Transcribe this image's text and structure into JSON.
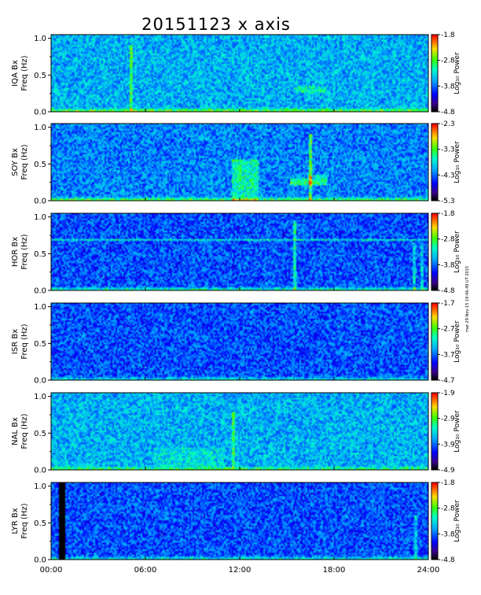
{
  "figure": {
    "title": "20151123 x axis",
    "side_note": "mat 29-Nov-15 19:46:49 UT 2015"
  },
  "chart_data": [
    {
      "type": "heatmap",
      "station": "IQA",
      "ylabel": [
        "IQA Bx",
        "Freq (Hz)"
      ],
      "yticks": [
        "1.0",
        "0.5",
        "0.0"
      ],
      "ylim": [
        0,
        1.05
      ],
      "xlim": [
        0,
        24
      ],
      "colorbar": {
        "label": "Log₁₀ Power",
        "ticks": [
          "-1.8",
          "-2.8",
          "-3.8",
          "-4.8"
        ],
        "range": [
          -4.8,
          -1.8
        ]
      },
      "base": 0.42,
      "features": [
        {
          "kind": "vline",
          "t": 5.1,
          "w": 0.12,
          "f0": 0.0,
          "f1": 0.9,
          "v": 0.22
        },
        {
          "kind": "blob",
          "t0": 15.5,
          "t1": 17.5,
          "f0": 0.25,
          "f1": 0.35,
          "v": 0.14
        },
        {
          "kind": "floor",
          "v": 0.32
        }
      ]
    },
    {
      "type": "heatmap",
      "station": "SOY",
      "ylabel": [
        "SOY Bx",
        "Freq (Hz)"
      ],
      "yticks": [
        "1.0",
        "0.5",
        "0.0"
      ],
      "ylim": [
        0,
        1.05
      ],
      "xlim": [
        0,
        24
      ],
      "colorbar": {
        "label": "Log₁₀ Power",
        "ticks": [
          "-2.3",
          "-3.3",
          "-4.3",
          "-5.3"
        ],
        "range": [
          -5.3,
          -2.3
        ]
      },
      "base": 0.36,
      "features": [
        {
          "kind": "blob",
          "t0": 11.5,
          "t1": 13.2,
          "f0": 0.0,
          "f1": 0.55,
          "v": 0.22
        },
        {
          "kind": "blob",
          "t0": 15.2,
          "t1": 16.3,
          "f0": 0.2,
          "f1": 0.3,
          "v": 0.3
        },
        {
          "kind": "blob",
          "t0": 16.3,
          "t1": 17.6,
          "f0": 0.22,
          "f1": 0.34,
          "v": 0.24
        },
        {
          "kind": "vline",
          "t": 16.5,
          "w": 0.08,
          "f0": 0.0,
          "f1": 0.9,
          "v": 0.3
        },
        {
          "kind": "floor",
          "v": 0.36
        }
      ]
    },
    {
      "type": "heatmap",
      "station": "HOR",
      "ylabel": [
        "HOR Bx",
        "Freq (Hz)"
      ],
      "yticks": [
        "1.0",
        "0.5",
        "0.0"
      ],
      "ylim": [
        0,
        1.05
      ],
      "xlim": [
        0,
        24
      ],
      "colorbar": {
        "label": "Log₁₀ Power",
        "ticks": [
          "-1.8",
          "-2.8",
          "-3.8",
          "-4.8"
        ],
        "range": [
          -4.8,
          -1.8
        ]
      },
      "base": 0.3,
      "features": [
        {
          "kind": "hline",
          "f": 0.69,
          "v": 0.2
        },
        {
          "kind": "vline",
          "t": 15.5,
          "w": 0.08,
          "f0": 0.0,
          "f1": 0.95,
          "v": 0.24
        },
        {
          "kind": "vline",
          "t": 23.1,
          "w": 0.1,
          "f0": 0.0,
          "f1": 0.65,
          "v": 0.18
        },
        {
          "kind": "vline",
          "t": 23.6,
          "w": 0.1,
          "f0": 0.0,
          "f1": 0.65,
          "v": 0.16
        },
        {
          "kind": "floor",
          "v": 0.3
        }
      ]
    },
    {
      "type": "heatmap",
      "station": "ISR",
      "ylabel": [
        "ISR Bx",
        "Freq (Hz)"
      ],
      "yticks": [
        "1.0",
        "0.5",
        "0.0"
      ],
      "ylim": [
        0,
        1.05
      ],
      "xlim": [
        0,
        24
      ],
      "colorbar": {
        "label": "Log₁₀ Power",
        "ticks": [
          "-1.7",
          "-2.7",
          "-3.7",
          "-4.7"
        ],
        "range": [
          -4.7,
          -1.7
        ]
      },
      "base": 0.3,
      "features": [
        {
          "kind": "floor",
          "v": 0.22
        }
      ]
    },
    {
      "type": "heatmap",
      "station": "NAL",
      "ylabel": [
        "NAL Bx",
        "Freq (Hz)"
      ],
      "yticks": [
        "1.0",
        "0.5",
        "0.0"
      ],
      "ylim": [
        0,
        1.05
      ],
      "xlim": [
        0,
        24
      ],
      "colorbar": {
        "label": "Log₁₀ Power",
        "ticks": [
          "-1.9",
          "-2.9",
          "-3.9",
          "-4.9"
        ],
        "range": [
          -4.9,
          -1.9
        ]
      },
      "base": 0.42,
      "features": [
        {
          "kind": "vline",
          "t": 11.6,
          "w": 0.08,
          "f0": 0.0,
          "f1": 0.8,
          "v": 0.2
        },
        {
          "kind": "blob",
          "t0": 6.5,
          "t1": 11.0,
          "f0": 0.05,
          "f1": 0.3,
          "v": 0.08
        },
        {
          "kind": "floor",
          "v": 0.24
        }
      ]
    },
    {
      "type": "heatmap",
      "station": "LYR",
      "ylabel": [
        "LYR Bx",
        "Freq (Hz)"
      ],
      "yticks": [
        "1.0",
        "0.5",
        "0.0"
      ],
      "ylim": [
        0,
        1.05
      ],
      "xlim": [
        0,
        24
      ],
      "xticks": [
        "00:00",
        "06:00",
        "12:00",
        "18:00",
        "24:00"
      ],
      "colorbar": {
        "label": "Log₁₀ Power",
        "ticks": [
          "-1.8",
          "-2.8",
          "-3.8",
          "-4.8"
        ],
        "range": [
          -4.8,
          -1.8
        ]
      },
      "base": 0.3,
      "features": [
        {
          "kind": "gap",
          "t0": 0.55,
          "t1": 0.85
        },
        {
          "kind": "vline",
          "t": 23.2,
          "w": 0.1,
          "f0": 0.0,
          "f1": 0.6,
          "v": 0.16
        },
        {
          "kind": "floor",
          "v": 0.24
        }
      ]
    }
  ]
}
